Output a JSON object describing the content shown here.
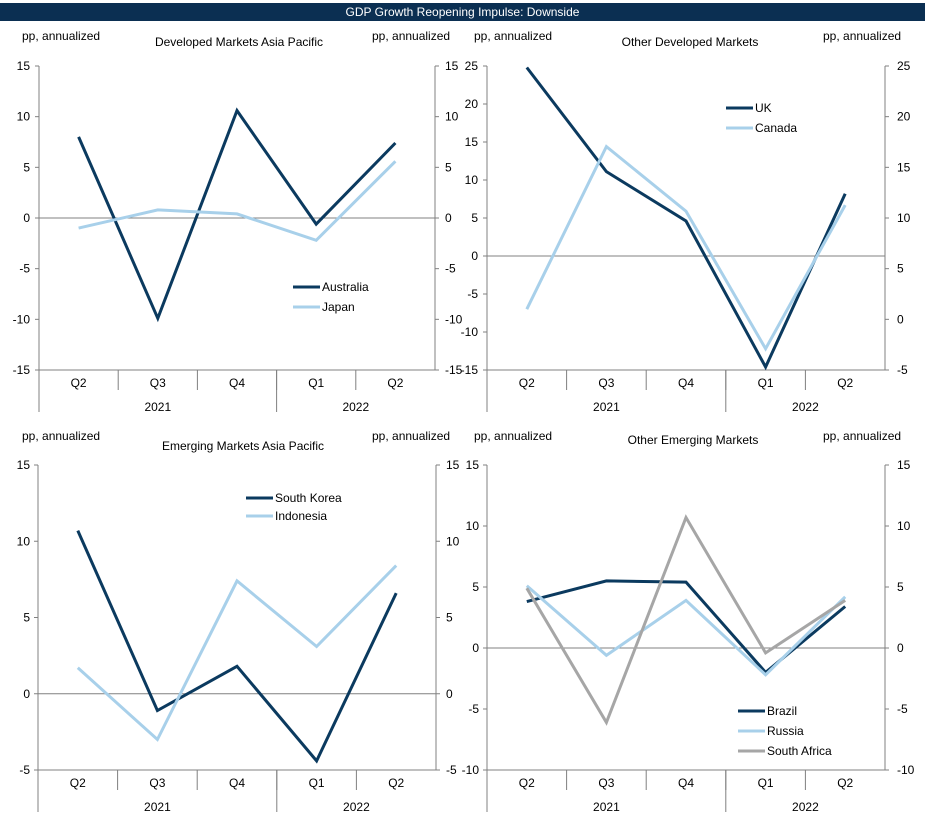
{
  "title": "GDP Growth Reopening Impulse: Downside",
  "colors": {
    "dark": "#0b3a5f",
    "light": "#a8d0ea",
    "gray": "#a6a6a6",
    "axis": "#808080",
    "header": "#0b2f52"
  },
  "chart_data": [
    {
      "type": "line",
      "title": "Developed Markets Asia Pacific",
      "ylabel_left": "pp, annualized",
      "ylabel_right": "pp, annualized",
      "categories": [
        "Q2",
        "Q3",
        "Q4",
        "Q1",
        "Q2"
      ],
      "year_groups": [
        {
          "label": "2021",
          "span": 3
        },
        {
          "label": "2022",
          "span": 2
        }
      ],
      "ylim": [
        -15,
        15
      ],
      "yticks": [
        -15,
        -10,
        -5,
        0,
        5,
        10,
        15
      ],
      "right_ylim": [
        -15,
        15
      ],
      "right_ticks": [
        -15,
        -10,
        -5,
        0,
        5,
        10,
        15
      ],
      "legend_position": "lower-right",
      "series": [
        {
          "name": "Australia",
          "color": "#0b3a5f",
          "values": [
            8.0,
            -9.9,
            10.6,
            -0.6,
            7.4
          ]
        },
        {
          "name": "Japan",
          "color": "#a8d0ea",
          "values": [
            -1.0,
            0.8,
            0.4,
            -2.2,
            5.6
          ]
        }
      ]
    },
    {
      "type": "line",
      "title": "Other Developed Markets",
      "ylabel_left": "pp, annualized",
      "ylabel_right": "pp, annualized",
      "categories": [
        "Q2",
        "Q3",
        "Q4",
        "Q1",
        "Q2"
      ],
      "year_groups": [
        {
          "label": "2021",
          "span": 3
        },
        {
          "label": "2022",
          "span": 2
        }
      ],
      "ylim": [
        -15,
        25
      ],
      "yticks": [
        -15,
        -10,
        -5,
        0,
        5,
        10,
        15,
        20,
        25
      ],
      "right_ylim": [
        -5,
        25
      ],
      "right_ticks": [
        -5,
        0,
        5,
        10,
        15,
        20,
        25
      ],
      "legend_position": "top-center",
      "series": [
        {
          "name": "UK",
          "color": "#0b3a5f",
          "values": [
            24.8,
            11.1,
            4.6,
            -14.6,
            8.2
          ]
        },
        {
          "name": "Canada",
          "color": "#a8d0ea",
          "values": [
            -7.0,
            14.4,
            5.9,
            -12.2,
            6.7
          ]
        }
      ]
    },
    {
      "type": "line",
      "title": "Emerging Markets Asia Pacific",
      "ylabel_left": "pp, annualized",
      "ylabel_right": "pp, annualized",
      "categories": [
        "Q2",
        "Q3",
        "Q4",
        "Q1",
        "Q2"
      ],
      "year_groups": [
        {
          "label": "2021",
          "span": 3
        },
        {
          "label": "2022",
          "span": 2
        }
      ],
      "ylim": [
        -5,
        15
      ],
      "yticks": [
        -5,
        0,
        5,
        10,
        15
      ],
      "right_ylim": [
        -5,
        15
      ],
      "right_ticks": [
        -5,
        0,
        5,
        10,
        15
      ],
      "legend_position": "top-center",
      "series": [
        {
          "name": "South Korea",
          "color": "#0b3a5f",
          "values": [
            10.7,
            -1.1,
            1.8,
            -4.4,
            6.6
          ]
        },
        {
          "name": "Indonesia",
          "color": "#a8d0ea",
          "values": [
            1.7,
            -3.0,
            7.4,
            3.1,
            8.4
          ]
        }
      ]
    },
    {
      "type": "line",
      "title": "Other Emerging Markets",
      "ylabel_left": "pp, annualized",
      "ylabel_right": "pp, annualized",
      "categories": [
        "Q2",
        "Q3",
        "Q4",
        "Q1",
        "Q2"
      ],
      "year_groups": [
        {
          "label": "2021",
          "span": 3
        },
        {
          "label": "2022",
          "span": 2
        }
      ],
      "ylim": [
        -10,
        15
      ],
      "yticks": [
        -10,
        -5,
        0,
        5,
        10,
        15
      ],
      "right_ylim": [
        -10,
        15
      ],
      "right_ticks": [
        -10,
        -5,
        0,
        5,
        10,
        15
      ],
      "legend_position": "bottom-right",
      "series": [
        {
          "name": "Brazil",
          "color": "#0b3a5f",
          "values": [
            3.8,
            5.5,
            5.4,
            -2.0,
            3.4
          ]
        },
        {
          "name": "Russia",
          "color": "#a8d0ea",
          "values": [
            5.1,
            -0.6,
            3.9,
            -2.2,
            4.2
          ]
        },
        {
          "name": "South Africa",
          "color": "#a6a6a6",
          "values": [
            4.9,
            -6.1,
            10.7,
            -0.4,
            3.9
          ]
        }
      ]
    }
  ]
}
